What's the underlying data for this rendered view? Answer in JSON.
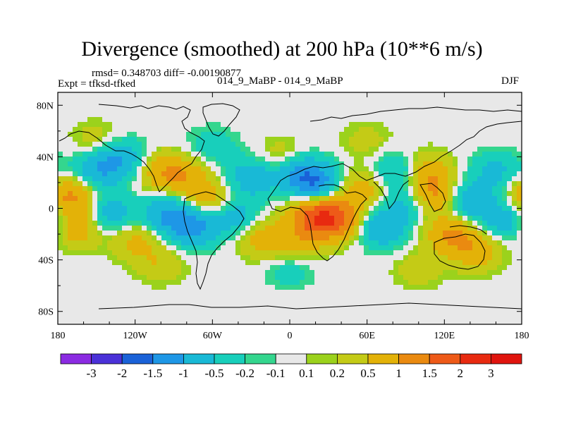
{
  "chart_data": {
    "type": "heatmap",
    "title": "Divergence (smoothed) at 200 hPa (10**6 m/s)",
    "stats_text": "rmsd= 0.348703 diff= -0.00190877",
    "expt_text": "Expt = tfksd-tfked",
    "runs_text": "014_9_MaBP - 014_9_MaBP",
    "season": "DJF",
    "xlim": [
      -180,
      180
    ],
    "ylim": [
      -90,
      90
    ],
    "x_ticks": [
      {
        "value": -180,
        "label": "180"
      },
      {
        "value": -120,
        "label": "120W"
      },
      {
        "value": -60,
        "label": "60W"
      },
      {
        "value": 0,
        "label": "0"
      },
      {
        "value": 60,
        "label": "60E"
      },
      {
        "value": 120,
        "label": "120E"
      },
      {
        "value": 180,
        "label": "180"
      }
    ],
    "y_ticks": [
      {
        "value": 80,
        "label": "80N"
      },
      {
        "value": 40,
        "label": "40N"
      },
      {
        "value": 0,
        "label": "0"
      },
      {
        "value": -40,
        "label": "40S"
      },
      {
        "value": -80,
        "label": "80S"
      }
    ],
    "colorbar": {
      "levels": [
        "-3",
        "-2",
        "-1.5",
        "-1",
        "-0.5",
        "-0.2",
        "-0.1",
        "0.1",
        "0.2",
        "0.5",
        "1",
        "1.5",
        "2",
        "3"
      ],
      "colors": [
        "#8b2be2",
        "#4a31d8",
        "#1a62d8",
        "#1e97e6",
        "#19b9d6",
        "#18cfbb",
        "#34d68e",
        "#e8e8e8",
        "#9bd21c",
        "#c4cb16",
        "#e3b208",
        "#ea8a10",
        "#ee5a18",
        "#e82a10",
        "#e0140e"
      ]
    },
    "field_centers": [
      {
        "lon": -170,
        "lat": 10,
        "value": 1.2
      },
      {
        "lon": -165,
        "lat": -15,
        "value": 1.0
      },
      {
        "lon": -150,
        "lat": 30,
        "value": -1.0
      },
      {
        "lon": -130,
        "lat": 40,
        "value": -1.1
      },
      {
        "lon": -140,
        "lat": -5,
        "value": -0.9
      },
      {
        "lon": -120,
        "lat": -25,
        "value": 0.7
      },
      {
        "lon": -100,
        "lat": 30,
        "value": 0.9
      },
      {
        "lon": -80,
        "lat": 25,
        "value": 0.8
      },
      {
        "lon": -95,
        "lat": -5,
        "value": -1.0
      },
      {
        "lon": -75,
        "lat": -15,
        "value": -1.2
      },
      {
        "lon": -60,
        "lat": 5,
        "value": 0.9
      },
      {
        "lon": -45,
        "lat": -5,
        "value": -0.9
      },
      {
        "lon": -30,
        "lat": 25,
        "value": -0.9
      },
      {
        "lon": -20,
        "lat": -25,
        "value": 0.8
      },
      {
        "lon": -5,
        "lat": 40,
        "value": 0.7
      },
      {
        "lon": 5,
        "lat": 30,
        "value": -1.0
      },
      {
        "lon": 20,
        "lat": 20,
        "value": -1.4
      },
      {
        "lon": 20,
        "lat": -5,
        "value": 1.6
      },
      {
        "lon": 40,
        "lat": -10,
        "value": 1.3
      },
      {
        "lon": 10,
        "lat": -25,
        "value": 0.7
      },
      {
        "lon": 55,
        "lat": 15,
        "value": 0.8
      },
      {
        "lon": 70,
        "lat": -15,
        "value": -1.1
      },
      {
        "lon": 85,
        "lat": 30,
        "value": -0.9
      },
      {
        "lon": 95,
        "lat": 5,
        "value": -0.8
      },
      {
        "lon": 110,
        "lat": 10,
        "value": 1.3
      },
      {
        "lon": 105,
        "lat": 30,
        "value": 1.0
      },
      {
        "lon": 125,
        "lat": -20,
        "value": 1.1
      },
      {
        "lon": 140,
        "lat": 5,
        "value": -1.0
      },
      {
        "lon": 145,
        "lat": -35,
        "value": 0.9
      },
      {
        "lon": 160,
        "lat": 30,
        "value": -0.7
      },
      {
        "lon": 170,
        "lat": -10,
        "value": -0.9
      },
      {
        "lon": -150,
        "lat": 55,
        "value": 0.6
      },
      {
        "lon": -60,
        "lat": 50,
        "value": -0.6
      },
      {
        "lon": 60,
        "lat": 55,
        "value": 0.5
      },
      {
        "lon": -100,
        "lat": -45,
        "value": 0.6
      },
      {
        "lon": 0,
        "lat": -50,
        "value": -0.5
      },
      {
        "lon": 100,
        "lat": -50,
        "value": 0.5
      }
    ]
  }
}
